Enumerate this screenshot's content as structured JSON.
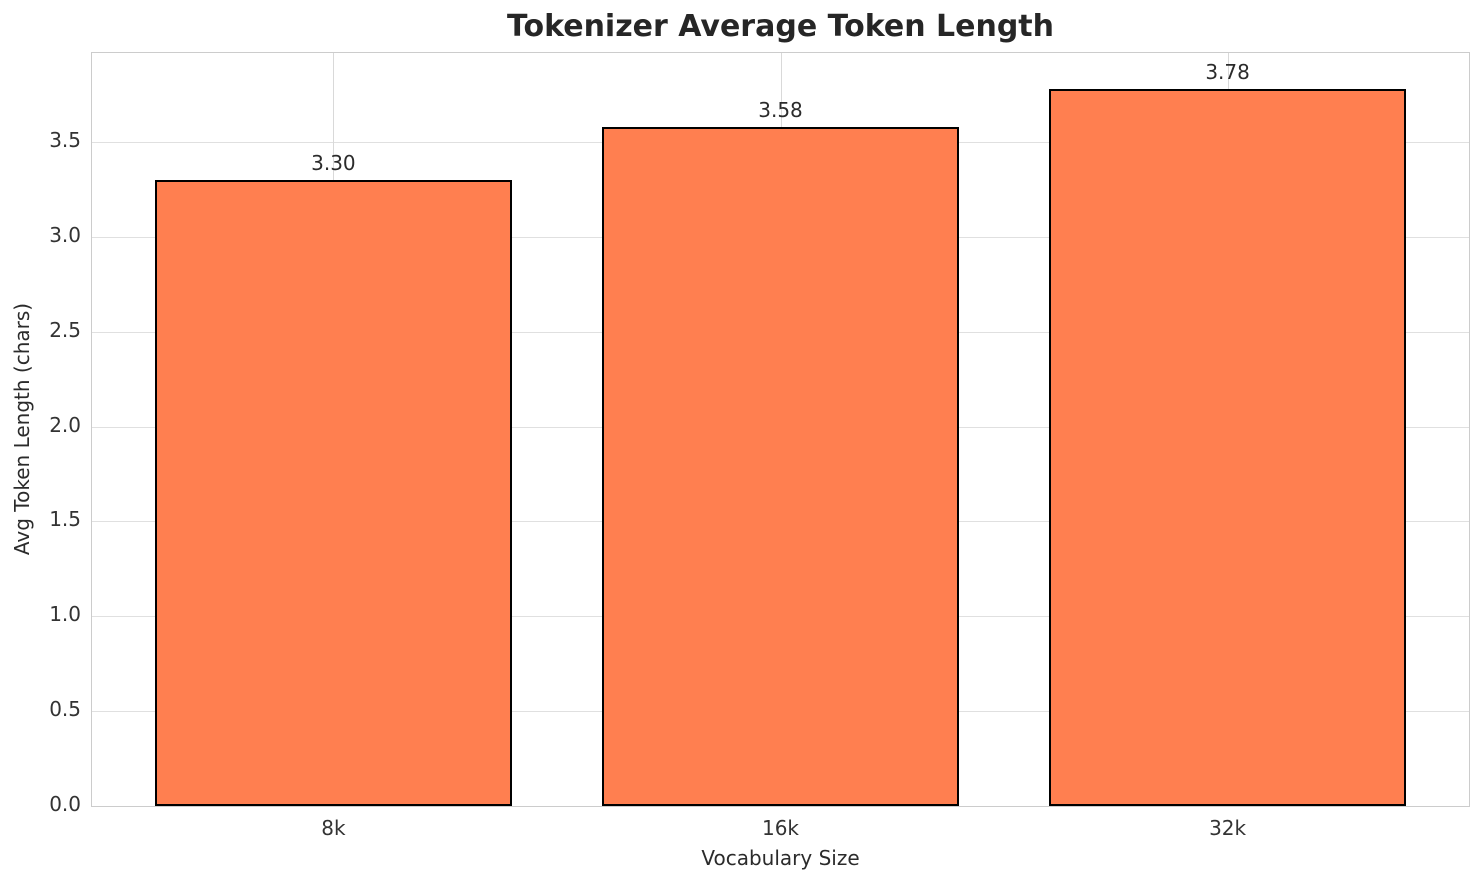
{
  "chart_data": {
    "type": "bar",
    "title": "Tokenizer Average Token Length",
    "xlabel": "Vocabulary Size",
    "ylabel": "Avg Token Length (chars)",
    "categories": [
      "8k",
      "16k",
      "32k"
    ],
    "values": [
      3.3,
      3.58,
      3.78
    ],
    "value_labels": [
      "3.30",
      "3.58",
      "3.78"
    ],
    "yticks": [
      0.0,
      0.5,
      1.0,
      1.5,
      2.0,
      2.5,
      3.0,
      3.5
    ],
    "ytick_labels": [
      "0.0",
      "0.5",
      "1.0",
      "1.5",
      "2.0",
      "2.5",
      "3.0",
      "3.5"
    ],
    "ylim": [
      0,
      3.969
    ],
    "xlim": [
      -0.54,
      2.54
    ],
    "bar_width": 0.8,
    "grid": true,
    "legend": "none",
    "colors": {
      "bar_fill": "#FF7F50",
      "bar_edge": "#000000",
      "grid_h": "#e0e0e0",
      "grid_v": "#d9d9d9",
      "spine": "#cccccc",
      "title_text": "#262626",
      "tick_text": "#333333",
      "label_text": "#2b2b2b"
    }
  }
}
